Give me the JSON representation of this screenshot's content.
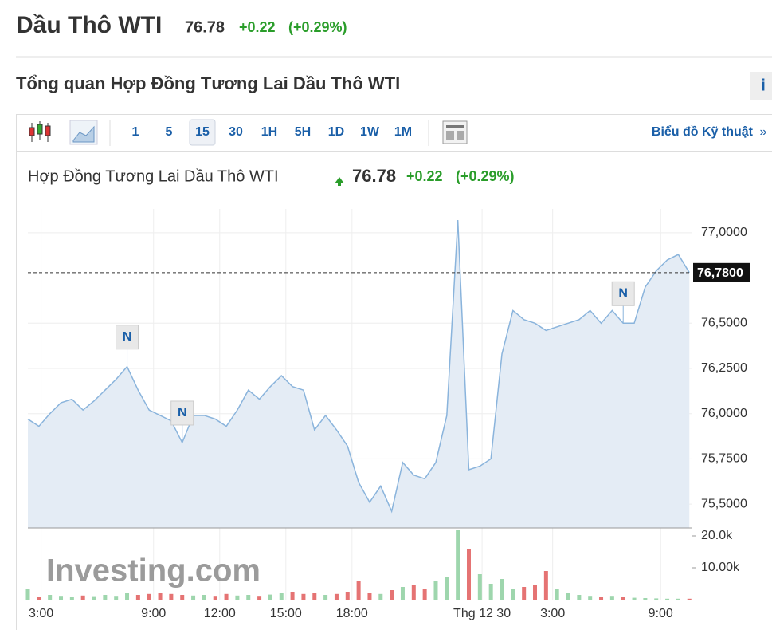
{
  "header": {
    "title": "Dầu Thô WTI",
    "price": "76.78",
    "change": "+0.22",
    "change_pct": "(+0.29%)"
  },
  "overview": {
    "title": "Tổng quan Hợp Đồng Tương Lai Dầu Thô WTI",
    "info": "i"
  },
  "toolbar": {
    "intervals": [
      "1",
      "5",
      "15",
      "30",
      "1H",
      "5H",
      "1D",
      "1W",
      "1M"
    ],
    "active": 2,
    "link": "Biểu đồ Kỹ thuật",
    "link_arrow": "»"
  },
  "chart_data": {
    "type": "line",
    "title": "Hợp Đồng Tương Lai Dầu Thô WTI",
    "price": "76.78",
    "change": "+0.22",
    "change_pct": "(+0.29%)",
    "x": [
      0,
      0.5,
      1,
      1.5,
      2,
      2.5,
      3,
      3.5,
      4,
      4.5,
      5,
      5.5,
      6,
      6.5,
      7,
      7.5,
      8,
      8.5,
      9,
      9.5,
      10,
      10.5,
      11,
      11.5,
      12,
      12.5,
      13,
      13.5,
      14,
      14.5,
      15,
      15.5,
      16,
      16.5,
      17,
      17.5,
      18,
      18.5,
      19,
      19.5,
      20,
      20.5,
      21,
      21.5,
      22,
      22.5,
      23,
      23.5,
      24,
      24.5,
      25,
      25.5,
      26,
      26.5,
      27,
      27.5,
      28,
      28.5,
      29,
      29.5,
      30
    ],
    "series": [
      {
        "color": "#8ab4dc",
        "fill": "#e4ecf5",
        "values": [
          75.97,
          75.93,
          76.0,
          76.06,
          76.08,
          76.02,
          76.07,
          76.13,
          76.19,
          76.26,
          76.13,
          76.02,
          75.99,
          75.96,
          75.84,
          75.99,
          75.99,
          75.97,
          75.93,
          76.02,
          76.13,
          76.08,
          76.15,
          76.21,
          76.15,
          76.13,
          75.91,
          75.99,
          75.91,
          75.82,
          75.62,
          75.51,
          75.6,
          75.46,
          75.73,
          75.66,
          75.64,
          75.73,
          75.99,
          77.07,
          75.69,
          75.71,
          75.75,
          76.33,
          76.57,
          76.52,
          76.5,
          76.46,
          76.48,
          76.5,
          76.52,
          76.57,
          76.5,
          76.57,
          76.5,
          76.5,
          76.7,
          76.79,
          76.85,
          76.88,
          76.78
        ]
      }
    ],
    "xlim": [
      0,
      30.1
    ],
    "xticks": [
      {
        "value": 0.6,
        "label": "3:00"
      },
      {
        "value": 5.7,
        "label": "9:00"
      },
      {
        "value": 8.7,
        "label": "12:00"
      },
      {
        "value": 11.7,
        "label": "15:00"
      },
      {
        "value": 14.7,
        "label": "18:00"
      },
      {
        "value": 20.6,
        "label": "Thg 12 30"
      },
      {
        "value": 23.8,
        "label": "3:00"
      },
      {
        "value": 28.7,
        "label": "9:00"
      }
    ],
    "ylim": [
      75.368,
      77.132
    ],
    "yticks": [
      {
        "value": 75.5,
        "label": "75,5000"
      },
      {
        "value": 75.75,
        "label": "75,7500"
      },
      {
        "value": 76,
        "label": "76,0000"
      },
      {
        "value": 76.25,
        "label": "76,2500"
      },
      {
        "value": 76.5,
        "label": "76,5000"
      },
      {
        "value": 77,
        "label": "77,0000"
      }
    ],
    "last": {
      "value": 76.78,
      "label": "76,7800"
    },
    "grid": true,
    "annotations": [
      {
        "x": 4.5,
        "text": "N"
      },
      {
        "x": 7,
        "text": "N"
      },
      {
        "x": 27,
        "text": "N"
      }
    ],
    "watermark": "Investing.com",
    "volume": {
      "up_color": "#9ed6ad",
      "down_color": "#e57373",
      "ylim": [
        0,
        22500
      ],
      "yticks": [
        {
          "value": 10000,
          "label": "10.00k"
        },
        {
          "value": 20000,
          "label": "20.0k"
        }
      ],
      "values": [
        3500,
        1000,
        1500,
        1200,
        1000,
        1300,
        1100,
        1500,
        1200,
        2000,
        1500,
        1800,
        2200,
        1800,
        1500,
        1300,
        1500,
        1200,
        1800,
        1300,
        1500,
        1200,
        1600,
        2000,
        2500,
        1800,
        2200,
        1500,
        1800,
        2500,
        6000,
        2200,
        1800,
        3000,
        4000,
        4500,
        3500,
        6000,
        7000,
        22000,
        16000,
        8000,
        5000,
        6500,
        3500,
        4000,
        4500,
        9000,
        3500,
        2000,
        1500,
        1200,
        1000,
        1200,
        800,
        600,
        500,
        400,
        300,
        300,
        300
      ]
    }
  }
}
